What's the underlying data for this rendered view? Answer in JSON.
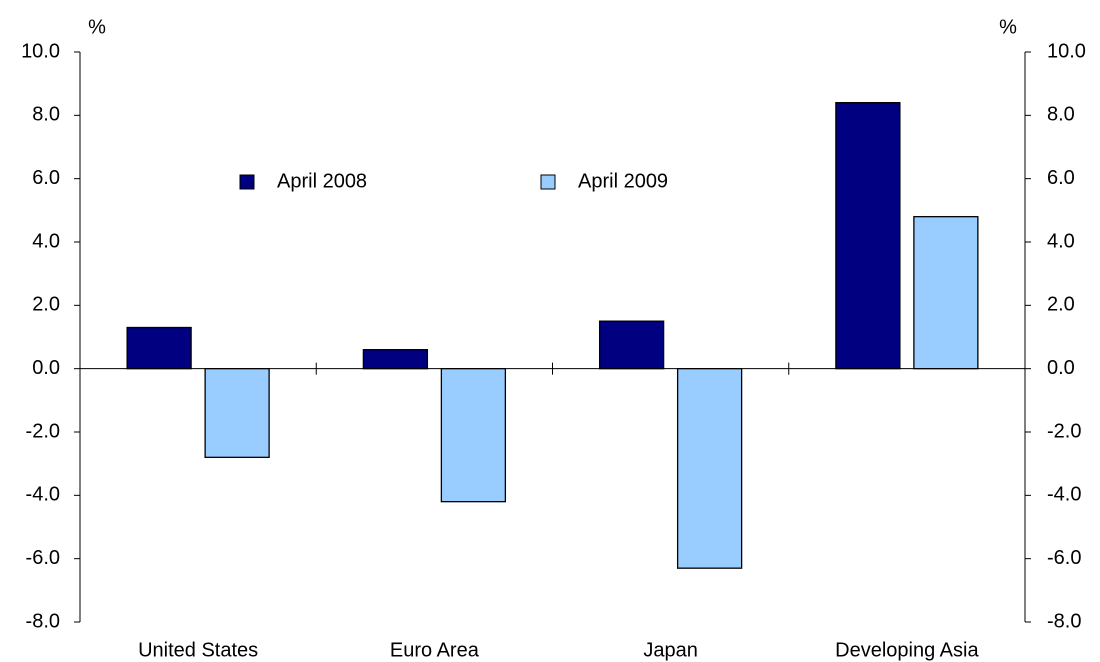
{
  "chart_data": {
    "type": "bar",
    "ylabel": "%",
    "y2label": "%",
    "categories": [
      "United States",
      "Euro Area",
      "Japan",
      "Developing Asia"
    ],
    "series": [
      {
        "name": "April 2008",
        "color": "#000080",
        "values": [
          1.3,
          0.6,
          1.5,
          8.4
        ]
      },
      {
        "name": "April 2009",
        "color": "#99ccff",
        "values": [
          -2.8,
          -4.2,
          -6.3,
          4.8
        ]
      }
    ],
    "ylim": [
      -8,
      10
    ],
    "yticks": [
      {
        "value": -8,
        "label": "-8.0"
      },
      {
        "value": -6,
        "label": "-6.0"
      },
      {
        "value": -4,
        "label": "-4.0"
      },
      {
        "value": -2,
        "label": "-2.0"
      },
      {
        "value": 0,
        "label": "0.0"
      },
      {
        "value": 2,
        "label": "2.0"
      },
      {
        "value": 4,
        "label": "4.0"
      },
      {
        "value": 6,
        "label": "6.0"
      },
      {
        "value": 8,
        "label": "8.0"
      },
      {
        "value": 10,
        "label": "10.0"
      }
    ],
    "y2lim": [
      -8,
      10
    ],
    "y2ticks": [
      {
        "value": -8,
        "label": "-8.0"
      },
      {
        "value": -6,
        "label": "-6.0"
      },
      {
        "value": -4,
        "label": "-4.0"
      },
      {
        "value": -2,
        "label": "-2.0"
      },
      {
        "value": 0,
        "label": "0.0"
      },
      {
        "value": 2,
        "label": "2.0"
      },
      {
        "value": 4,
        "label": "4.0"
      },
      {
        "value": 6,
        "label": "6.0"
      },
      {
        "value": 8,
        "label": "8.0"
      },
      {
        "value": 10,
        "label": "10.0"
      }
    ],
    "legend": "upper center",
    "grid": false
  }
}
